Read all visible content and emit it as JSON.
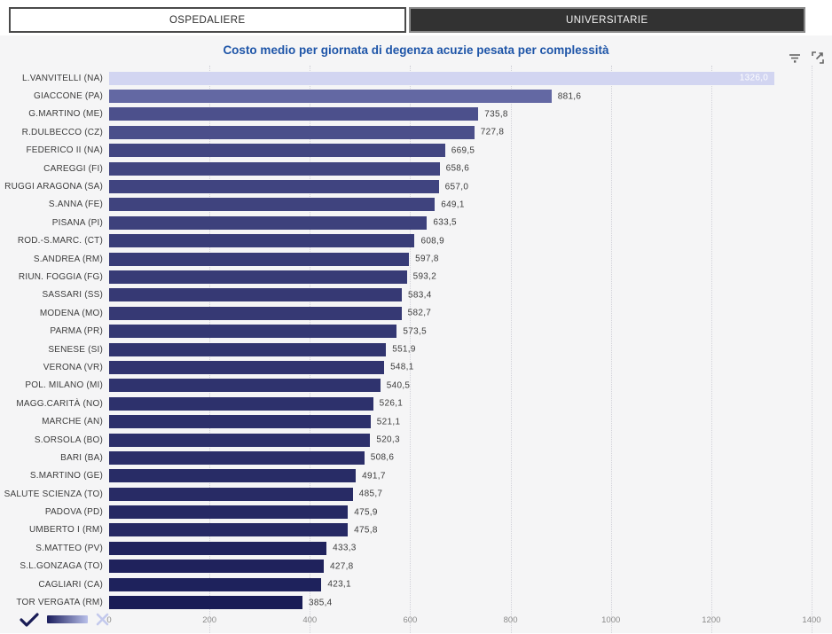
{
  "tabs": [
    {
      "label": "OSPEDALIERE",
      "active": false
    },
    {
      "label": "UNIVERSITARIE",
      "active": true
    }
  ],
  "header": {
    "title": "Costo medio per giornata di degenza acuzie pesata per complessità",
    "icons": [
      "filter-icon",
      "focus-mode-icon"
    ]
  },
  "chart_data": {
    "type": "bar",
    "orientation": "horizontal",
    "title": "Costo medio per giornata di degenza acuzie pesata per complessità",
    "categories": [
      "L.VANVITELLI (NA)",
      "GIACCONE (PA)",
      "G.MARTINO (ME)",
      "R.DULBECCO (CZ)",
      "FEDERICO II (NA)",
      "CAREGGI (FI)",
      "RUGGI ARAGONA (SA)",
      "S.ANNA (FE)",
      "PISANA (PI)",
      "ROD.-S.MARC. (CT)",
      "S.ANDREA (RM)",
      "RIUN. FOGGIA (FG)",
      "SASSARI (SS)",
      "MODENA (MO)",
      "PARMA (PR)",
      "SENESE (SI)",
      "VERONA (VR)",
      "POL. MILANO (MI)",
      "MAGG.CARITÀ (NO)",
      "MARCHE (AN)",
      "S.ORSOLA (BO)",
      "BARI (BA)",
      "S.MARTINO (GE)",
      "SALUTE SCIENZA (TO)",
      "PADOVA (PD)",
      "UMBERTO I (RM)",
      "S.MATTEO (PV)",
      "S.L.GONZAGA (TO)",
      "CAGLIARI (CA)",
      "TOR VERGATA (RM)"
    ],
    "values": [
      1326.0,
      881.6,
      735.8,
      727.8,
      669.5,
      658.6,
      657.0,
      649.1,
      633.5,
      608.9,
      597.8,
      593.2,
      583.4,
      582.7,
      573.5,
      551.9,
      548.1,
      540.5,
      526.1,
      521.1,
      520.3,
      508.6,
      491.7,
      485.7,
      475.9,
      475.8,
      433.3,
      427.8,
      423.1,
      385.4
    ],
    "xlim": [
      0,
      1400
    ],
    "x_ticks": [
      0,
      200,
      400,
      600,
      800,
      1000,
      1200,
      1400
    ],
    "grid": "vertical-dotted",
    "legend_position": "bottom-left",
    "decimal_separator": ",",
    "color_scale": {
      "min": "#191c56",
      "mid": "#5d629e",
      "max": "#d2d5f1"
    }
  },
  "legend": {
    "icons": [
      "check-icon",
      "gradient-swatch",
      "clear-icon"
    ],
    "gradient": [
      "#1a1d5c",
      "#b9c0ea"
    ],
    "check_color": "#191c56",
    "clear_color": "#c3c9ed"
  },
  "colors": {
    "title": "#1e55a8",
    "panel_bg": "#f5f5f6",
    "tab_active_bg": "#323232",
    "label_text": "#3c3c3c",
    "tick_text": "#8a8a8a"
  }
}
